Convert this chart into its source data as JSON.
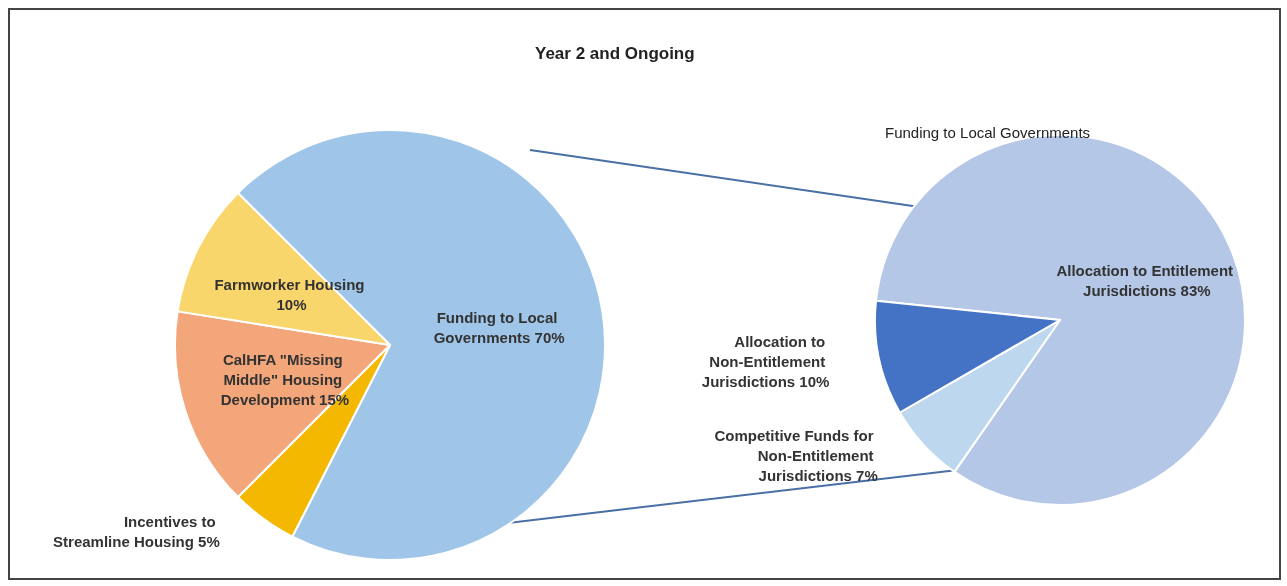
{
  "chart_data": [
    {
      "type": "pie",
      "title": "Year 2 and Ongoing",
      "categories": [
        "Funding to Local Governments",
        "Incentives to Streamline Housing",
        "CalHFA \"Missing Middle\" Housing Development",
        "Farmworker Housing"
      ],
      "values": [
        70,
        5,
        15,
        10
      ],
      "value_labels": [
        "70%",
        "5%",
        "15%",
        "10%"
      ],
      "colors": [
        "#9fc5e8",
        "#f5b800",
        "#f2a67a",
        "#f9d66b"
      ],
      "data_labels": true,
      "legend": false
    },
    {
      "type": "pie",
      "title": "Funding to Local Governments",
      "categories": [
        "Allocation to Entitlement Jurisdictions",
        "Competitive Funds for Non-Entitlement Jurisdictions",
        "Allocation to Non-Entitlement Jurisdictions"
      ],
      "values": [
        83,
        7,
        10
      ],
      "value_labels": [
        "83%",
        "7%",
        "10%"
      ],
      "colors": [
        "#b4c7e7",
        "#bdd7ee",
        "#4472c4"
      ],
      "data_labels": true,
      "legend": false
    }
  ]
}
